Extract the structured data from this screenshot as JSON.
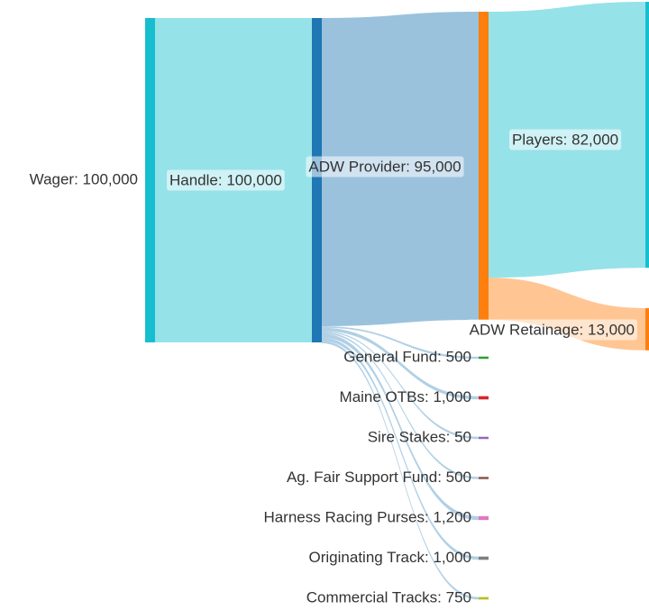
{
  "chart_data": {
    "type": "sankey",
    "nodes": [
      {
        "id": "wager",
        "label": "Wager: 100,000",
        "value": 100000,
        "color": "#17becf"
      },
      {
        "id": "handle",
        "label": "Handle: 100,000",
        "value": 100000,
        "color": "#1f77b4"
      },
      {
        "id": "adw",
        "label": "ADW Provider: 95,000",
        "value": 95000,
        "color": "#ff7f0e"
      },
      {
        "id": "players",
        "label": "Players: 82,000",
        "value": 82000,
        "color": "#17becf"
      },
      {
        "id": "retainage",
        "label": "ADW Retainage: 13,000",
        "value": 13000,
        "color": "#ff7f0e"
      },
      {
        "id": "general",
        "label": "General Fund: 500",
        "value": 500,
        "color": "#2ca02c"
      },
      {
        "id": "otbs",
        "label": "Maine OTBs: 1,000",
        "value": 1000,
        "color": "#d62728"
      },
      {
        "id": "sire",
        "label": "Sire Stakes: 50",
        "value": 50,
        "color": "#9467bd"
      },
      {
        "id": "agfair",
        "label": "Ag. Fair Support Fund: 500",
        "value": 500,
        "color": "#8c564b"
      },
      {
        "id": "harness",
        "label": "Harness Racing Purses: 1,200",
        "value": 1200,
        "color": "#e377c2"
      },
      {
        "id": "originating",
        "label": "Originating Track: 1,000",
        "value": 1000,
        "color": "#7f7f7f"
      },
      {
        "id": "commercial",
        "label": "Commercial Tracks: 750",
        "value": 750,
        "color": "#bcbd22"
      }
    ],
    "links": [
      {
        "source": "wager",
        "target": "handle",
        "value": 100000,
        "color": "#17becf"
      },
      {
        "source": "handle",
        "target": "adw",
        "value": 95000,
        "color": "#1f77b4"
      },
      {
        "source": "handle",
        "target": "general",
        "value": 500,
        "color": "#1f77b4"
      },
      {
        "source": "handle",
        "target": "otbs",
        "value": 1000,
        "color": "#1f77b4"
      },
      {
        "source": "handle",
        "target": "sire",
        "value": 50,
        "color": "#1f77b4"
      },
      {
        "source": "handle",
        "target": "agfair",
        "value": 500,
        "color": "#1f77b4"
      },
      {
        "source": "handle",
        "target": "harness",
        "value": 1200,
        "color": "#1f77b4"
      },
      {
        "source": "handle",
        "target": "originating",
        "value": 1000,
        "color": "#1f77b4"
      },
      {
        "source": "handle",
        "target": "commercial",
        "value": 750,
        "color": "#1f77b4"
      },
      {
        "source": "adw",
        "target": "players",
        "value": 82000,
        "color": "#17becf"
      },
      {
        "source": "adw",
        "target": "retainage",
        "value": 13000,
        "color": "#ff7f0e"
      }
    ]
  }
}
